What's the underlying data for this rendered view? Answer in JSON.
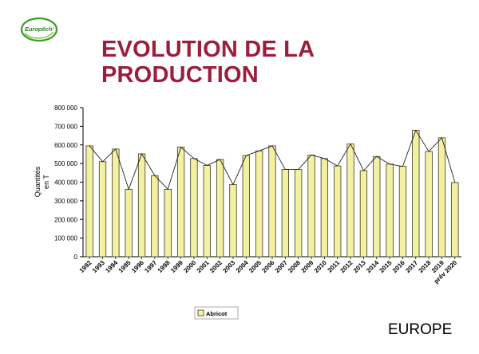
{
  "logo": {
    "text": "Europêch'"
  },
  "title": {
    "line1": "EVOLUTION DE LA",
    "line2": "PRODUCTION"
  },
  "footer": {
    "label": "EUROPE"
  },
  "colors": {
    "title": "#9b1e3c",
    "bar_fill": "#f4f0a2",
    "bar_stroke": "#3a3a20",
    "logo_green": "#3e9b2e"
  },
  "chart_data": {
    "type": "bar",
    "overlay": "line",
    "ylabel": [
      "Quantités",
      "en T"
    ],
    "ylim": [
      0,
      800000
    ],
    "yticks": [
      "0",
      "100 000",
      "200 000",
      "300 000",
      "400 000",
      "500 000",
      "600 000",
      "700 000",
      "800 000"
    ],
    "grid": false,
    "legend_position": "bottom-left",
    "categories": [
      "1992",
      "1993",
      "1994",
      "1995",
      "1996",
      "1997",
      "1998",
      "1999",
      "2000",
      "2001",
      "2002",
      "2003",
      "2004",
      "2005",
      "2006",
      "2007",
      "2008",
      "2009",
      "2010",
      "2011",
      "2012",
      "2013",
      "2014",
      "2015",
      "2016",
      "2017",
      "2018",
      "2019",
      "prév 2020"
    ],
    "series": [
      {
        "name": "Abricot",
        "values": [
          595000,
          510000,
          578000,
          362000,
          552000,
          435000,
          362000,
          588000,
          527000,
          490000,
          522000,
          387000,
          543000,
          568000,
          595000,
          468000,
          468000,
          546000,
          527000,
          487000,
          605000,
          462000,
          538000,
          497000,
          485000,
          678000,
          565000,
          638000,
          398000
        ]
      }
    ]
  }
}
